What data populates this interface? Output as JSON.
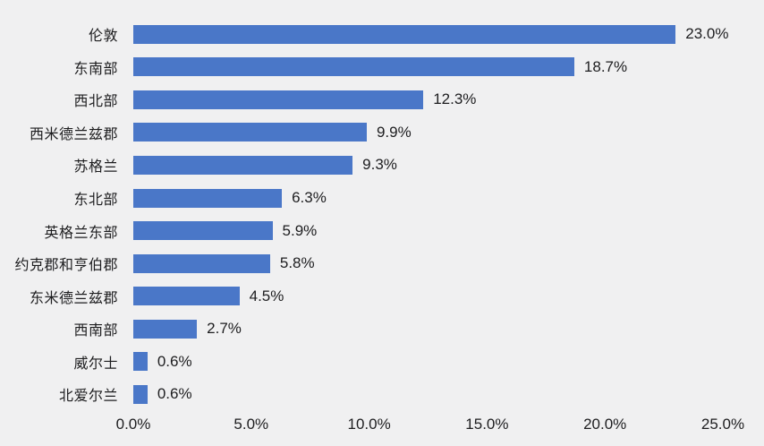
{
  "chart_data": {
    "type": "bar",
    "orientation": "horizontal",
    "title": "",
    "xlabel": "",
    "ylabel": "",
    "grid": false,
    "legend": false,
    "categories": [
      "伦敦",
      "东南部",
      "西北部",
      "西米德兰兹郡",
      "苏格兰",
      "东北部",
      "英格兰东部",
      "约克郡和亨伯郡",
      "东米德兰兹郡",
      "西南部",
      "威尔士",
      "北爱尔兰"
    ],
    "values": [
      23.0,
      18.7,
      12.3,
      9.9,
      9.3,
      6.3,
      5.9,
      5.8,
      4.5,
      2.7,
      0.6,
      0.6
    ],
    "value_labels": [
      "23.0%",
      "18.7%",
      "12.3%",
      "9.9%",
      "9.3%",
      "6.3%",
      "5.9%",
      "5.8%",
      "4.5%",
      "2.7%",
      "0.6%",
      "0.6%"
    ],
    "x_axis": {
      "min": 0,
      "max": 25,
      "tick_values": [
        0,
        5,
        10,
        15,
        20,
        25
      ],
      "tick_labels": [
        "0.0%",
        "5.0%",
        "10.0%",
        "15.0%",
        "20.0%",
        "25.0%"
      ]
    },
    "colors": {
      "bar": "#4a77c8",
      "background": "#f0f0f1",
      "text": "#1d1d1f"
    }
  }
}
